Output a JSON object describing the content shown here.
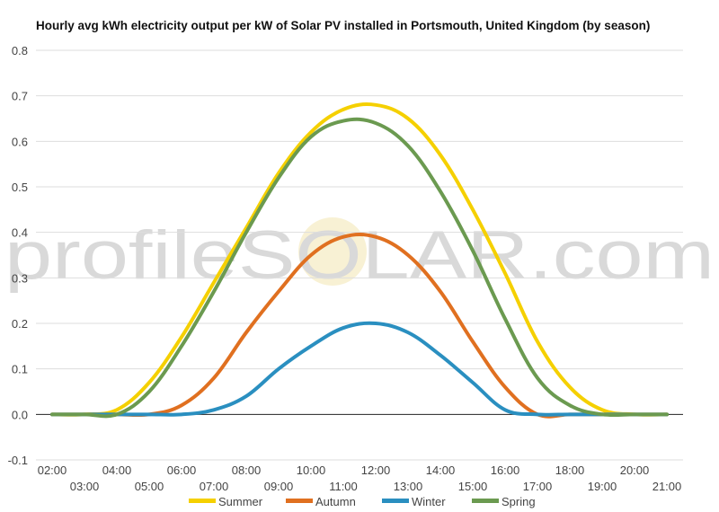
{
  "chart_data": {
    "type": "line",
    "title": "Hourly avg kWh electricity output per kW of Solar PV installed in Portsmouth, United Kingdom (by season)",
    "xlabel": "",
    "ylabel": "",
    "ylim": [
      -0.1,
      0.8
    ],
    "yticks": [
      "-0.1",
      "0.0",
      "0.1",
      "0.2",
      "0.3",
      "0.4",
      "0.5",
      "0.6",
      "0.7",
      "0.8"
    ],
    "xlim": [
      1.5,
      21.5
    ],
    "xticks_upper": [
      "02:00",
      "04:00",
      "06:00",
      "08:00",
      "10:00",
      "12:00",
      "14:00",
      "16:00",
      "18:00",
      "20:00"
    ],
    "xticks_lower": [
      "03:00",
      "05:00",
      "07:00",
      "09:00",
      "11:00",
      "13:00",
      "15:00",
      "17:00",
      "19:00",
      "21:00"
    ],
    "grid": true,
    "legend_position": "bottom",
    "watermark": "profileSOLAR.com",
    "x": [
      2,
      3,
      4,
      5,
      6,
      7,
      8,
      9,
      10,
      11,
      12,
      13,
      14,
      15,
      16,
      17,
      18,
      19,
      20,
      21
    ],
    "series": [
      {
        "name": "Summer",
        "color": "#f5d000",
        "values": [
          0.0,
          0.0,
          0.01,
          0.07,
          0.17,
          0.29,
          0.41,
          0.53,
          0.62,
          0.67,
          0.68,
          0.65,
          0.57,
          0.45,
          0.31,
          0.16,
          0.06,
          0.01,
          0.0,
          0.0
        ]
      },
      {
        "name": "Autumn",
        "color": "#e07020",
        "values": [
          0.0,
          0.0,
          0.0,
          0.0,
          0.02,
          0.08,
          0.18,
          0.27,
          0.35,
          0.39,
          0.39,
          0.35,
          0.27,
          0.16,
          0.06,
          0.0,
          0.0,
          0.0,
          0.0,
          0.0
        ]
      },
      {
        "name": "Winter",
        "color": "#2a8fc0",
        "values": [
          0.0,
          0.0,
          0.0,
          0.0,
          0.0,
          0.01,
          0.04,
          0.1,
          0.15,
          0.19,
          0.2,
          0.18,
          0.13,
          0.07,
          0.01,
          0.0,
          0.0,
          0.0,
          0.0,
          0.0
        ]
      },
      {
        "name": "Spring",
        "color": "#6b9a50",
        "values": [
          0.0,
          0.0,
          0.0,
          0.05,
          0.15,
          0.27,
          0.4,
          0.52,
          0.61,
          0.645,
          0.64,
          0.59,
          0.49,
          0.36,
          0.21,
          0.08,
          0.02,
          0.0,
          0.0,
          0.0
        ]
      }
    ]
  }
}
